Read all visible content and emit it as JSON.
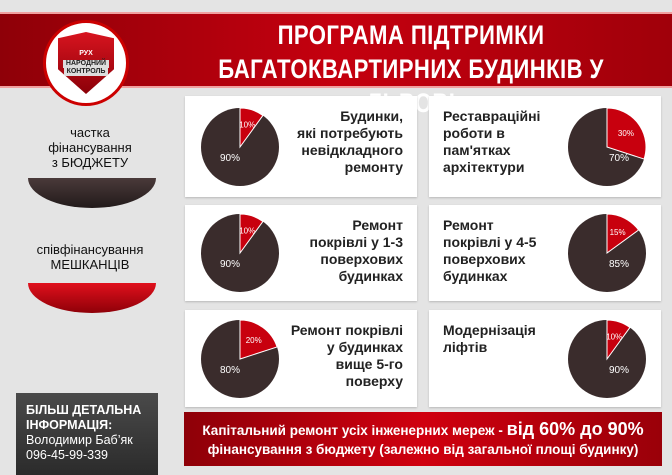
{
  "header": {
    "title_line1": "ПРОГРАМА ПІДТРИМКИ",
    "title_line2": "БАГАТОКВАРТИРНИХ БУДИНКІВ У ЛЬВОВІ",
    "logo_top": "РУХ",
    "logo_line1": "НАРОДНИЙ",
    "logo_line2": "КОНТРОЛЬ"
  },
  "legend": {
    "budget_line1": "частка",
    "budget_line2": "фінансування",
    "budget_line3": "з БЮДЖЕТУ",
    "residents_line1": "співфінансування",
    "residents_line2": "МЕШКАНЦІВ",
    "colors": {
      "budget": "#3a2c2c",
      "residents": "#c8000e"
    }
  },
  "chart_data": {
    "type": "pie",
    "series_names": [
      "частка фінансування з БЮДЖЕТУ",
      "співфінансування МЕШКАНЦІВ"
    ],
    "charts": [
      {
        "title": [
          "Будинки,",
          "які потребують",
          "невідкладного",
          "ремонту"
        ],
        "budget": 90,
        "residents": 10,
        "budget_label": "90%",
        "residents_label": "10%"
      },
      {
        "title": [
          "Реставраційні",
          "роботи в",
          "пам'ятках",
          "архітектури"
        ],
        "budget": 70,
        "residents": 30,
        "budget_label": "70%",
        "residents_label": "30%"
      },
      {
        "title": [
          "Ремонт",
          "покрівлі  у 1-3",
          "поверхових",
          "будинках"
        ],
        "budget": 90,
        "residents": 10,
        "budget_label": "90%",
        "residents_label": "10%"
      },
      {
        "title": [
          "Ремонт",
          "покрівлі у 4-5",
          "поверхових",
          "будинках"
        ],
        "budget": 85,
        "residents": 15,
        "budget_label": "85%",
        "residents_label": "15%"
      },
      {
        "title": [
          "Ремонт покрівлі",
          "у будинках",
          "вище 5-го",
          "поверху"
        ],
        "budget": 80,
        "residents": 20,
        "budget_label": "80%",
        "residents_label": "20%"
      },
      {
        "title": [
          "Модернізація",
          "ліфтів"
        ],
        "budget": 90,
        "residents": 10,
        "budget_label": "90%",
        "residents_label": "10%"
      }
    ]
  },
  "info": {
    "heading1": "БІЛЬШ ДЕТАЛЬНА",
    "heading2": "ІНФОРМАЦІЯ:",
    "name": "Володимир Баб’як",
    "phone": "096-45-99-339"
  },
  "footer": {
    "text1": "Капітальний ремонт усіх інженерних мереж - ",
    "highlight": "від 60% до 90%",
    "text2": "фінансування з бюджету (залежно від загальної площі будинку)"
  }
}
